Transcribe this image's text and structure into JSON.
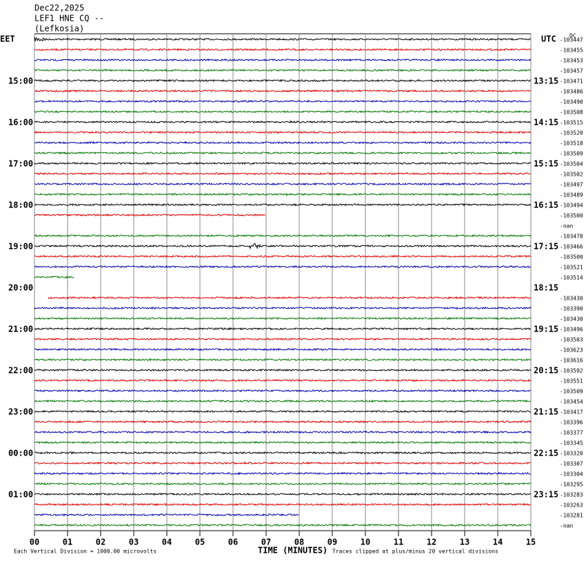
{
  "header": {
    "date": "Dec22,2025",
    "station": "LEF1 HNE CQ --",
    "place": "(Lefkosia)"
  },
  "left_zone": "EET",
  "right_zone": "UTC",
  "dc_label": "DC",
  "left_hours": [
    "15:00",
    "16:00",
    "17:00",
    "18:00",
    "19:00",
    "20:00",
    "21:00",
    "22:00",
    "23:00",
    "00:00",
    "01:00"
  ],
  "right_hours": [
    "13:15",
    "14:15",
    "15:15",
    "16:15",
    "17:15",
    "18:15",
    "19:15",
    "20:15",
    "21:15",
    "22:15",
    "23:15"
  ],
  "row_values": [
    "-103447",
    "-103455",
    "-103453",
    "-103457",
    "-103471",
    "-103486",
    "-103490",
    "-103508",
    "-103515",
    "-103520",
    "-103518",
    "-103509",
    "-103504",
    "-103502",
    "-103497",
    "-103489",
    "-103494",
    "-103500",
    "-nan",
    "-103478",
    "-103466",
    "-103500",
    "-103521",
    "-103514",
    null,
    "-103430",
    "-103390",
    "-103430",
    "-103496",
    "-103503",
    "-103623",
    "-103616",
    "-103592",
    "-103551",
    "-103509",
    "-103454",
    "-103417",
    "-103396",
    "-103377",
    "-103345",
    "-103320",
    "-103307",
    "-103304",
    "-103295",
    "-103283",
    "-103263",
    "-103281",
    "-nan"
  ],
  "minute_labels": [
    "00",
    "01",
    "02",
    "03",
    "04",
    "05",
    "06",
    "07",
    "08",
    "09",
    "10",
    "11",
    "12",
    "13",
    "14",
    "15"
  ],
  "footer": {
    "scale": "Each Vertical Division = 1000.00 microvolts",
    "axis_title": "TIME (MINUTES)",
    "clip_note": "Traces clipped at plus/minus 20 vertical divisions"
  }
}
